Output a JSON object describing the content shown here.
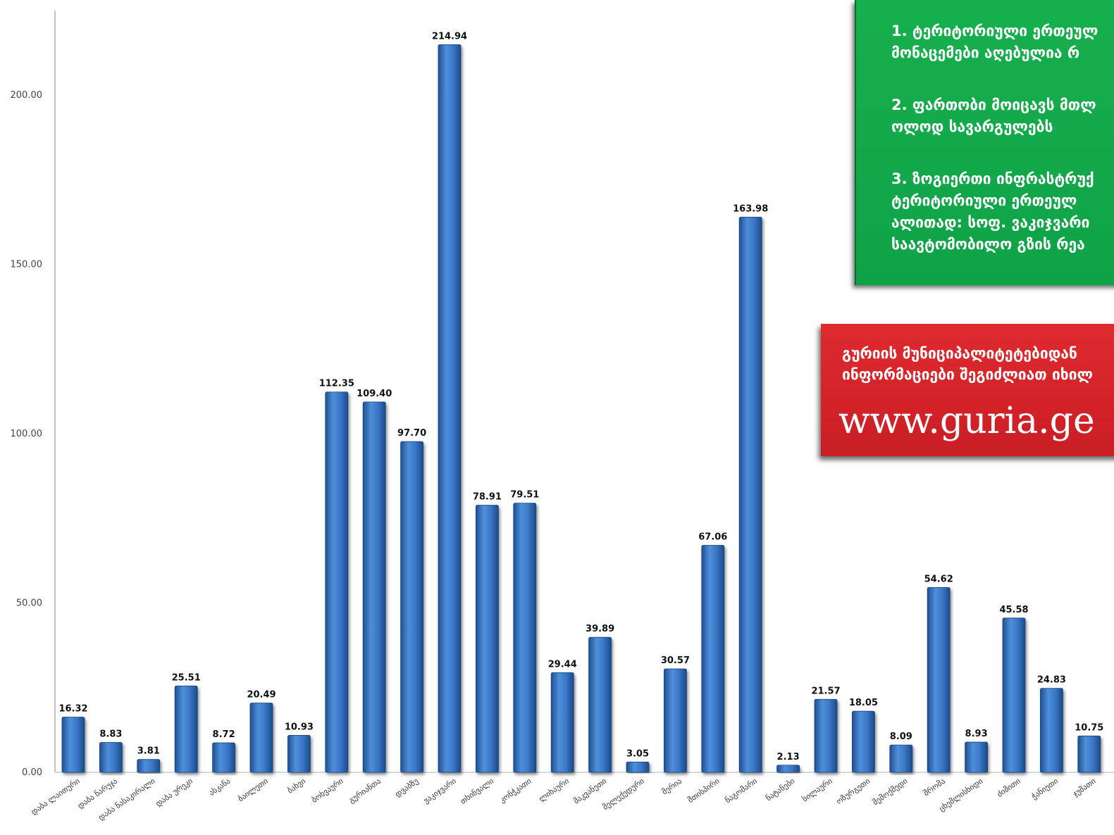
{
  "chart_data": {
    "type": "bar",
    "title": "",
    "xlabel": "",
    "ylabel": "",
    "ylim": [
      0,
      225
    ],
    "yticks": [
      "0.00",
      "50.00",
      "100.00",
      "150.00",
      "200.00"
    ],
    "grid": false,
    "bar_color": "#3a78c8",
    "categories": [
      "დაბა ლაითური",
      "დაბა ნარუჯა",
      "დაბა ნასაკირალი",
      "დაბა ურეკი",
      "ასკანა",
      "ბაილეთი",
      "ბახვი",
      "ბოხვაური",
      "გურიანთა",
      "დვაბზუ",
      "ვაკიჯვარი",
      "თხინვალი",
      "კონჭკათი",
      "ლიხაური",
      "მაკვანეთი",
      "მელექედური",
      "მერია",
      "მთისპირი",
      "ნაგომარი",
      "ნატანები",
      "სილაური",
      "ოზურგეთი",
      "შემოქმედი",
      "შრომა",
      "ცხემლისხიდი",
      "ძიმითი",
      "ჭანიეთი",
      "ჯუმათი"
    ],
    "values": [
      16.32,
      8.83,
      3.81,
      25.51,
      8.72,
      20.49,
      10.93,
      112.35,
      109.4,
      97.7,
      214.94,
      78.91,
      79.51,
      29.44,
      39.89,
      3.05,
      30.57,
      67.06,
      163.98,
      2.13,
      21.57,
      18.05,
      8.09,
      54.62,
      8.93,
      45.58,
      24.83,
      10.75
    ],
    "value_labels": [
      "16.32",
      "8.83",
      "3.81",
      "25.51",
      "8.72",
      "20.49",
      "10.93",
      "112.35",
      "109.40",
      "97.70",
      "214.94",
      "78.91",
      "79.51",
      "29.44",
      "39.89",
      "3.05",
      "30.57",
      "67.06",
      "163.98",
      "2.13",
      "21.57",
      "18.05",
      "8.09",
      "54.62",
      "8.93",
      "45.58",
      "24.83",
      "10.75"
    ]
  },
  "notes": {
    "bg_color": "#13a94a",
    "lines": [
      "1. ტერიტორიული ერთეულ",
      "მონაცემები აღებულია რ",
      "2. ფართობი მოიცავს მთლ",
      "ოლოდ სავარგულებს",
      "3. ზოგიერთი ინფრასტრუქ",
      "ტერიტორიული ერთეულ",
      "ალითად: სოფ. ვაკიჯვარი",
      "საავტომობილო გზის რეა"
    ]
  },
  "promo": {
    "bg_color": "#d42429",
    "lines": [
      "გურიის მუნიციპალიტეტებიდან",
      "ინფორმაციები შეგიძლიათ იხილ"
    ],
    "url": "www.guria.ge"
  }
}
